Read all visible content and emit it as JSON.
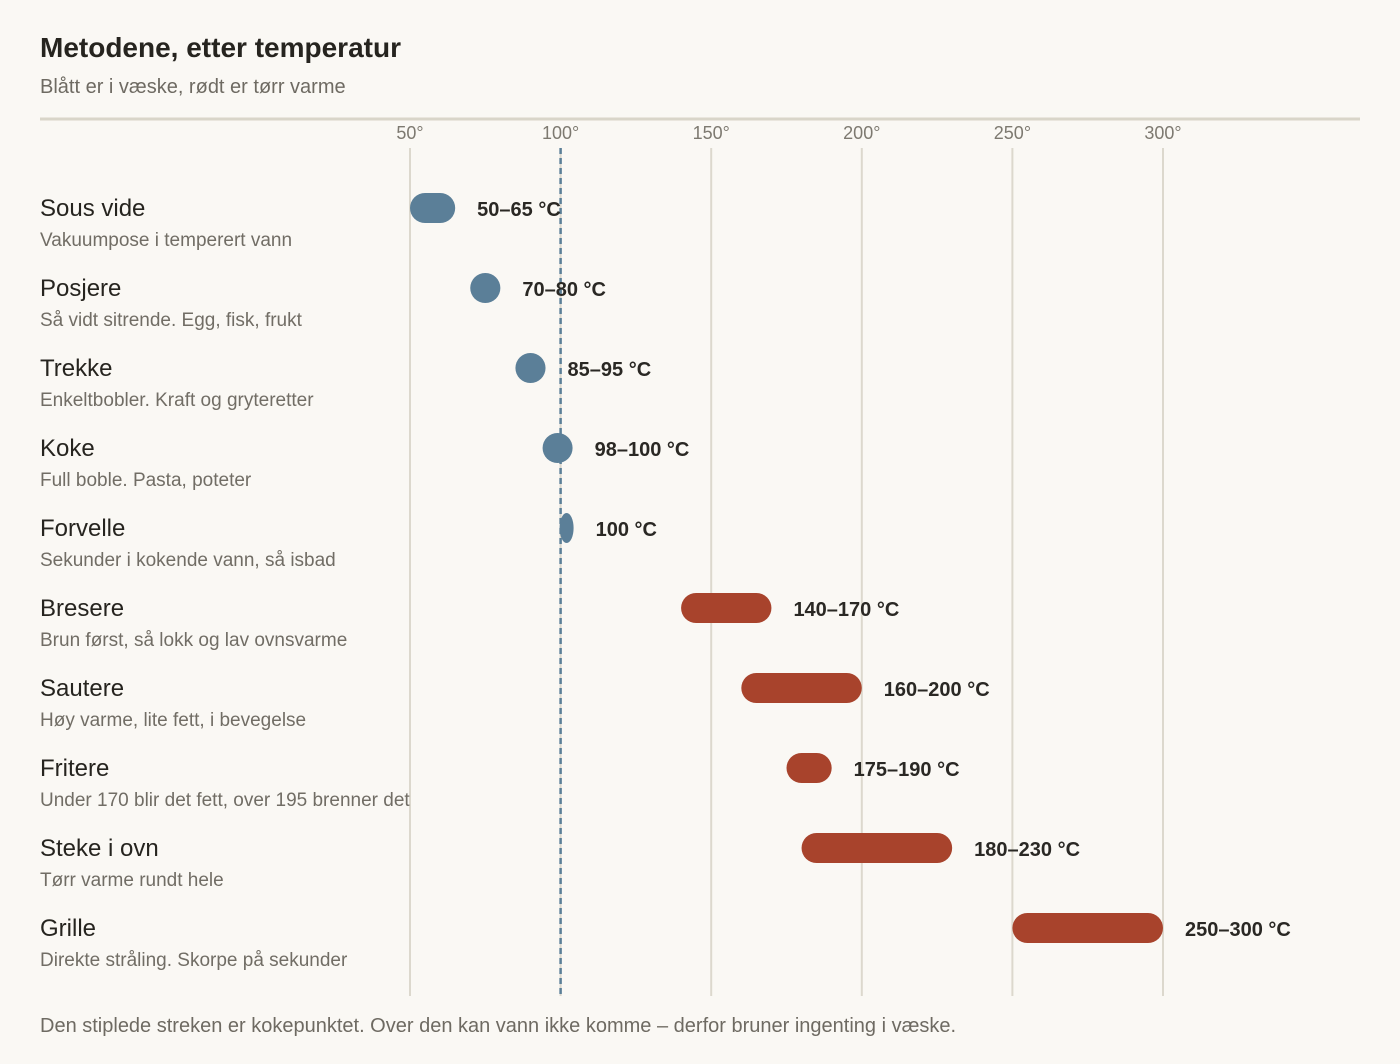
{
  "chart_data": {
    "type": "bar",
    "title": "Metodene, etter temperatur",
    "subtitle": "Blått er i væske, rødt er tørr varme",
    "footnote": "Den stiplede streken er kokepunktet. Over den kan vann ikke komme – derfor bruner ingenting i væske.",
    "x_ticks": [
      50,
      100,
      150,
      200,
      250,
      300
    ],
    "x_tick_labels": [
      "50°",
      "100°",
      "150°",
      "200°",
      "250°",
      "300°"
    ],
    "xlim": [
      50,
      300
    ],
    "reference_line": {
      "value": 100,
      "style": "dashed"
    },
    "grid": true,
    "colors": {
      "liquid": "#5b7f98",
      "dry": "#a8432c",
      "reference": "#5b7f98",
      "grid": "#dcd8cd"
    },
    "rows": [
      {
        "name": "Sous vide",
        "description": "Vakuumpose i temperert vann",
        "min": 50,
        "max": 65,
        "label": "50–65 °C",
        "medium": "liquid"
      },
      {
        "name": "Posjere",
        "description": "Så vidt sitrende. Egg, fisk, frukt",
        "min": 70,
        "max": 80,
        "label": "70–80 °C",
        "medium": "liquid"
      },
      {
        "name": "Trekke",
        "description": "Enkeltbobler. Kraft og gryteretter",
        "min": 85,
        "max": 95,
        "label": "85–95 °C",
        "medium": "liquid"
      },
      {
        "name": "Koke",
        "description": "Full boble. Pasta, poteter",
        "min": 98,
        "max": 100,
        "label": "98–100 °C",
        "medium": "liquid"
      },
      {
        "name": "Forvelle",
        "description": "Sekunder i kokende vann, så isbad",
        "min": 100,
        "max": 100,
        "label": "100 °C",
        "medium": "liquid"
      },
      {
        "name": "Bresere",
        "description": "Brun først, så lokk og lav ovnsvarme",
        "min": 140,
        "max": 170,
        "label": "140–170 °C",
        "medium": "dry"
      },
      {
        "name": "Sautere",
        "description": "Høy varme, lite fett, i bevegelse",
        "min": 160,
        "max": 200,
        "label": "160–200 °C",
        "medium": "dry"
      },
      {
        "name": "Fritere",
        "description": "Under 170 blir det fett, over 195 brenner det",
        "min": 175,
        "max": 190,
        "label": "175–190 °C",
        "medium": "dry"
      },
      {
        "name": "Steke i ovn",
        "description": "Tørr varme rundt hele",
        "min": 180,
        "max": 230,
        "label": "180–230 °C",
        "medium": "dry"
      },
      {
        "name": "Grille",
        "description": "Direkte stråling. Skorpe på sekunder",
        "min": 250,
        "max": 300,
        "label": "250–300 °C",
        "medium": "dry"
      }
    ]
  }
}
